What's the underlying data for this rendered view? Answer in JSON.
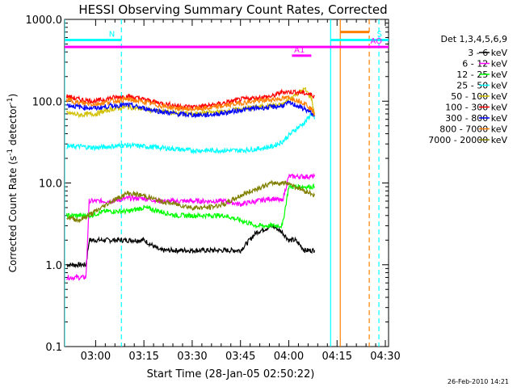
{
  "chart_data": {
    "type": "line",
    "title": "HESSI Observing Summary Count Rates, Corrected",
    "xlabel": "Start Time (28-Jan-05 02:50:22)",
    "ylabel": "Corrected Count Rate (s⁻¹ detector⁻¹)",
    "ylabel_parts": {
      "main": "Corrected Count Rate (s",
      "sup1": "-1",
      "mid": " detector",
      "sup2": "-1",
      "end": ")"
    },
    "y_scale": "log",
    "ylim": [
      0.1,
      1000
    ],
    "y_ticks": [
      {
        "value": 0.1,
        "label": "0.1"
      },
      {
        "value": 1,
        "label": "1.0"
      },
      {
        "value": 10,
        "label": "10.0"
      },
      {
        "value": 100,
        "label": "100.0"
      },
      {
        "value": 1000,
        "label": "1000.0"
      }
    ],
    "xlim": [
      "02:50:22",
      "04:31:00"
    ],
    "x_ticks": [
      {
        "value": "03:00",
        "label": "03:00"
      },
      {
        "value": "03:15",
        "label": "03:15"
      },
      {
        "value": "03:30",
        "label": "03:30"
      },
      {
        "value": "03:45",
        "label": "03:45"
      },
      {
        "value": "04:00",
        "label": "04:00"
      },
      {
        "value": "04:15",
        "label": "04:15"
      },
      {
        "value": "04:30",
        "label": "04:30"
      }
    ],
    "legend": {
      "position": "right",
      "title": "Det 1,3,4,5,6,9",
      "entries": [
        {
          "label": "3 - 6 keV",
          "color": "#000000"
        },
        {
          "label": "6 - 12 keV",
          "color": "#ff00ff"
        },
        {
          "label": "12 - 25 keV",
          "color": "#00ff00"
        },
        {
          "label": "25 - 50 keV",
          "color": "#00ffff"
        },
        {
          "label": "50 - 100 keV",
          "color": "#d2c000"
        },
        {
          "label": "100 - 300 keV",
          "color": "#ff0000"
        },
        {
          "label": "300 - 800 keV",
          "color": "#0000ff"
        },
        {
          "label": "800 - 7000 keV",
          "color": "#ff8000"
        },
        {
          "label": "7000 - 20000 keV",
          "color": "#808000"
        }
      ]
    },
    "series": [
      {
        "name": "3 - 6 keV",
        "color": "#000000",
        "x": [
          "02:51",
          "02:57",
          "02:58",
          "03:03",
          "03:05",
          "03:10",
          "03:15",
          "03:20",
          "03:25",
          "03:30",
          "03:35",
          "03:40",
          "03:45",
          "03:50",
          "03:55",
          "03:58",
          "04:00",
          "04:02",
          "04:05",
          "04:07",
          "04:08"
        ],
        "y": [
          1.0,
          1.0,
          2.0,
          2.0,
          2.0,
          2.0,
          2.0,
          1.5,
          1.5,
          1.5,
          1.5,
          1.5,
          1.5,
          2.5,
          3.0,
          2.5,
          2.0,
          2.0,
          1.5,
          1.5,
          1.5
        ]
      },
      {
        "name": "6 - 12 keV",
        "color": "#ff00ff",
        "x": [
          "02:51",
          "02:57",
          "02:58",
          "03:03",
          "03:05",
          "03:10",
          "03:15",
          "03:20",
          "03:25",
          "03:30",
          "03:35",
          "03:40",
          "03:45",
          "03:50",
          "03:55",
          "03:58",
          "04:00",
          "04:02",
          "04:05",
          "04:07",
          "04:08"
        ],
        "y": [
          0.7,
          0.7,
          6.0,
          6.0,
          6.0,
          6.5,
          6.5,
          6.0,
          6.0,
          6.0,
          6.0,
          6.0,
          5.5,
          6.0,
          6.5,
          6.0,
          12.0,
          12.0,
          12.0,
          12.0,
          12.0
        ]
      },
      {
        "name": "12 - 25 keV",
        "color": "#00ff00",
        "x": [
          "02:51",
          "02:58",
          "03:03",
          "03:05",
          "03:10",
          "03:15",
          "03:20",
          "03:25",
          "03:30",
          "03:35",
          "03:40",
          "03:45",
          "03:50",
          "03:55",
          "03:58",
          "04:00",
          "04:02",
          "04:05",
          "04:07",
          "04:08"
        ],
        "y": [
          4.0,
          4.0,
          4.5,
          4.5,
          4.5,
          5.0,
          4.5,
          4.0,
          4.0,
          4.0,
          4.0,
          3.5,
          3.0,
          3.0,
          3.0,
          9.0,
          9.0,
          9.0,
          9.0,
          9.0
        ]
      },
      {
        "name": "25 - 50 keV",
        "color": "#00ffff",
        "x": [
          "02:51",
          "02:55",
          "03:00",
          "03:05",
          "03:10",
          "03:15",
          "03:20",
          "03:25",
          "03:30",
          "03:35",
          "03:40",
          "03:45",
          "03:50",
          "03:55",
          "03:58",
          "04:00",
          "04:02",
          "04:05",
          "04:07",
          "04:08"
        ],
        "y": [
          28,
          28,
          27,
          28,
          29,
          28,
          27,
          26,
          25,
          25,
          25,
          25,
          26,
          28,
          32,
          38,
          45,
          55,
          70,
          60
        ]
      },
      {
        "name": "50 - 100 keV",
        "color": "#d2c000",
        "x": [
          "02:51",
          "02:55",
          "03:00",
          "03:05",
          "03:10",
          "03:15",
          "03:20",
          "03:25",
          "03:30",
          "03:35",
          "03:40",
          "03:45",
          "03:50",
          "03:55",
          "03:58",
          "04:00",
          "04:02",
          "04:05",
          "04:07",
          "04:08"
        ],
        "y": [
          72,
          68,
          70,
          80,
          85,
          80,
          75,
          72,
          70,
          72,
          75,
          80,
          85,
          88,
          90,
          105,
          120,
          140,
          110,
          70
        ]
      },
      {
        "name": "100 - 300 keV",
        "color": "#ff0000",
        "x": [
          "02:51",
          "02:55",
          "03:00",
          "03:05",
          "03:10",
          "03:15",
          "03:20",
          "03:25",
          "03:30",
          "03:35",
          "03:40",
          "03:45",
          "03:50",
          "03:55",
          "03:58",
          "04:00",
          "04:02",
          "04:05",
          "04:07",
          "04:08"
        ],
        "y": [
          115,
          105,
          100,
          110,
          115,
          105,
          95,
          88,
          85,
          88,
          95,
          105,
          110,
          115,
          130,
          130,
          130,
          125,
          120,
          115
        ]
      },
      {
        "name": "300 - 800 keV",
        "color": "#0000ff",
        "x": [
          "02:51",
          "02:55",
          "03:00",
          "03:05",
          "03:10",
          "03:15",
          "03:20",
          "03:25",
          "03:30",
          "03:35",
          "03:40",
          "03:45",
          "03:50",
          "03:55",
          "03:58",
          "04:00",
          "04:02",
          "04:05",
          "04:07",
          "04:08"
        ],
        "y": [
          90,
          85,
          82,
          88,
          90,
          82,
          75,
          70,
          68,
          68,
          72,
          78,
          82,
          85,
          88,
          95,
          90,
          80,
          72,
          65
        ]
      },
      {
        "name": "800 - 7000 keV",
        "color": "#ff8000",
        "x": [
          "02:51",
          "02:55",
          "03:00",
          "03:05",
          "03:10",
          "03:15",
          "03:20",
          "03:25",
          "03:30",
          "03:35",
          "03:40",
          "03:45",
          "03:50",
          "03:55",
          "03:58",
          "04:00",
          "04:02",
          "04:05",
          "04:07",
          "04:08"
        ],
        "y": [
          105,
          95,
          92,
          100,
          105,
          98,
          88,
          82,
          80,
          82,
          88,
          95,
          100,
          105,
          108,
          110,
          105,
          95,
          80,
          70
        ]
      },
      {
        "name": "7000 - 20000 keV",
        "color": "#808000",
        "x": [
          "02:51",
          "02:55",
          "03:00",
          "03:05",
          "03:10",
          "03:15",
          "03:20",
          "03:25",
          "03:30",
          "03:35",
          "03:40",
          "03:45",
          "03:50",
          "03:55",
          "03:58",
          "04:00",
          "04:02",
          "04:05",
          "04:07",
          "04:08"
        ],
        "y": [
          3.8,
          3.5,
          4.5,
          6.0,
          7.5,
          7.0,
          6.0,
          5.5,
          5.0,
          5.0,
          5.5,
          7.0,
          8.5,
          10.0,
          10.0,
          10.0,
          9.0,
          8.0,
          7.5,
          7.0
        ]
      }
    ],
    "annotations": {
      "bars": [
        {
          "label": "N",
          "color": "#00ffff",
          "x": [
            "02:50:22",
            "03:08"
          ],
          "y": 560
        },
        {
          "label": "S",
          "color": "#00ffff",
          "x": [
            "04:13",
            "04:31"
          ],
          "y": 560
        },
        {
          "label": "AO",
          "color": "#ff00ff",
          "x": [
            "02:50:22",
            "04:31"
          ],
          "y": 460
        },
        {
          "label": "A1",
          "color": "#ff00ff",
          "x": [
            "04:01",
            "04:07"
          ],
          "y": 360
        },
        {
          "label": "",
          "color": "#ff8000",
          "x": [
            "04:16",
            "04:25"
          ],
          "y": 700
        }
      ],
      "vlines": [
        {
          "x": "02:50:22",
          "color": "#00ffff",
          "style": "solid"
        },
        {
          "x": "03:08",
          "color": "#00ffff",
          "style": "dashed"
        },
        {
          "x": "04:13",
          "color": "#00ffff",
          "style": "solid"
        },
        {
          "x": "04:28",
          "color": "#00ffff",
          "style": "dashed"
        },
        {
          "x": "04:16",
          "color": "#ff8000",
          "style": "solid"
        },
        {
          "x": "04:25",
          "color": "#ff8000",
          "style": "dashed"
        }
      ]
    },
    "timestamp": "26-Feb-2010 14:21"
  }
}
